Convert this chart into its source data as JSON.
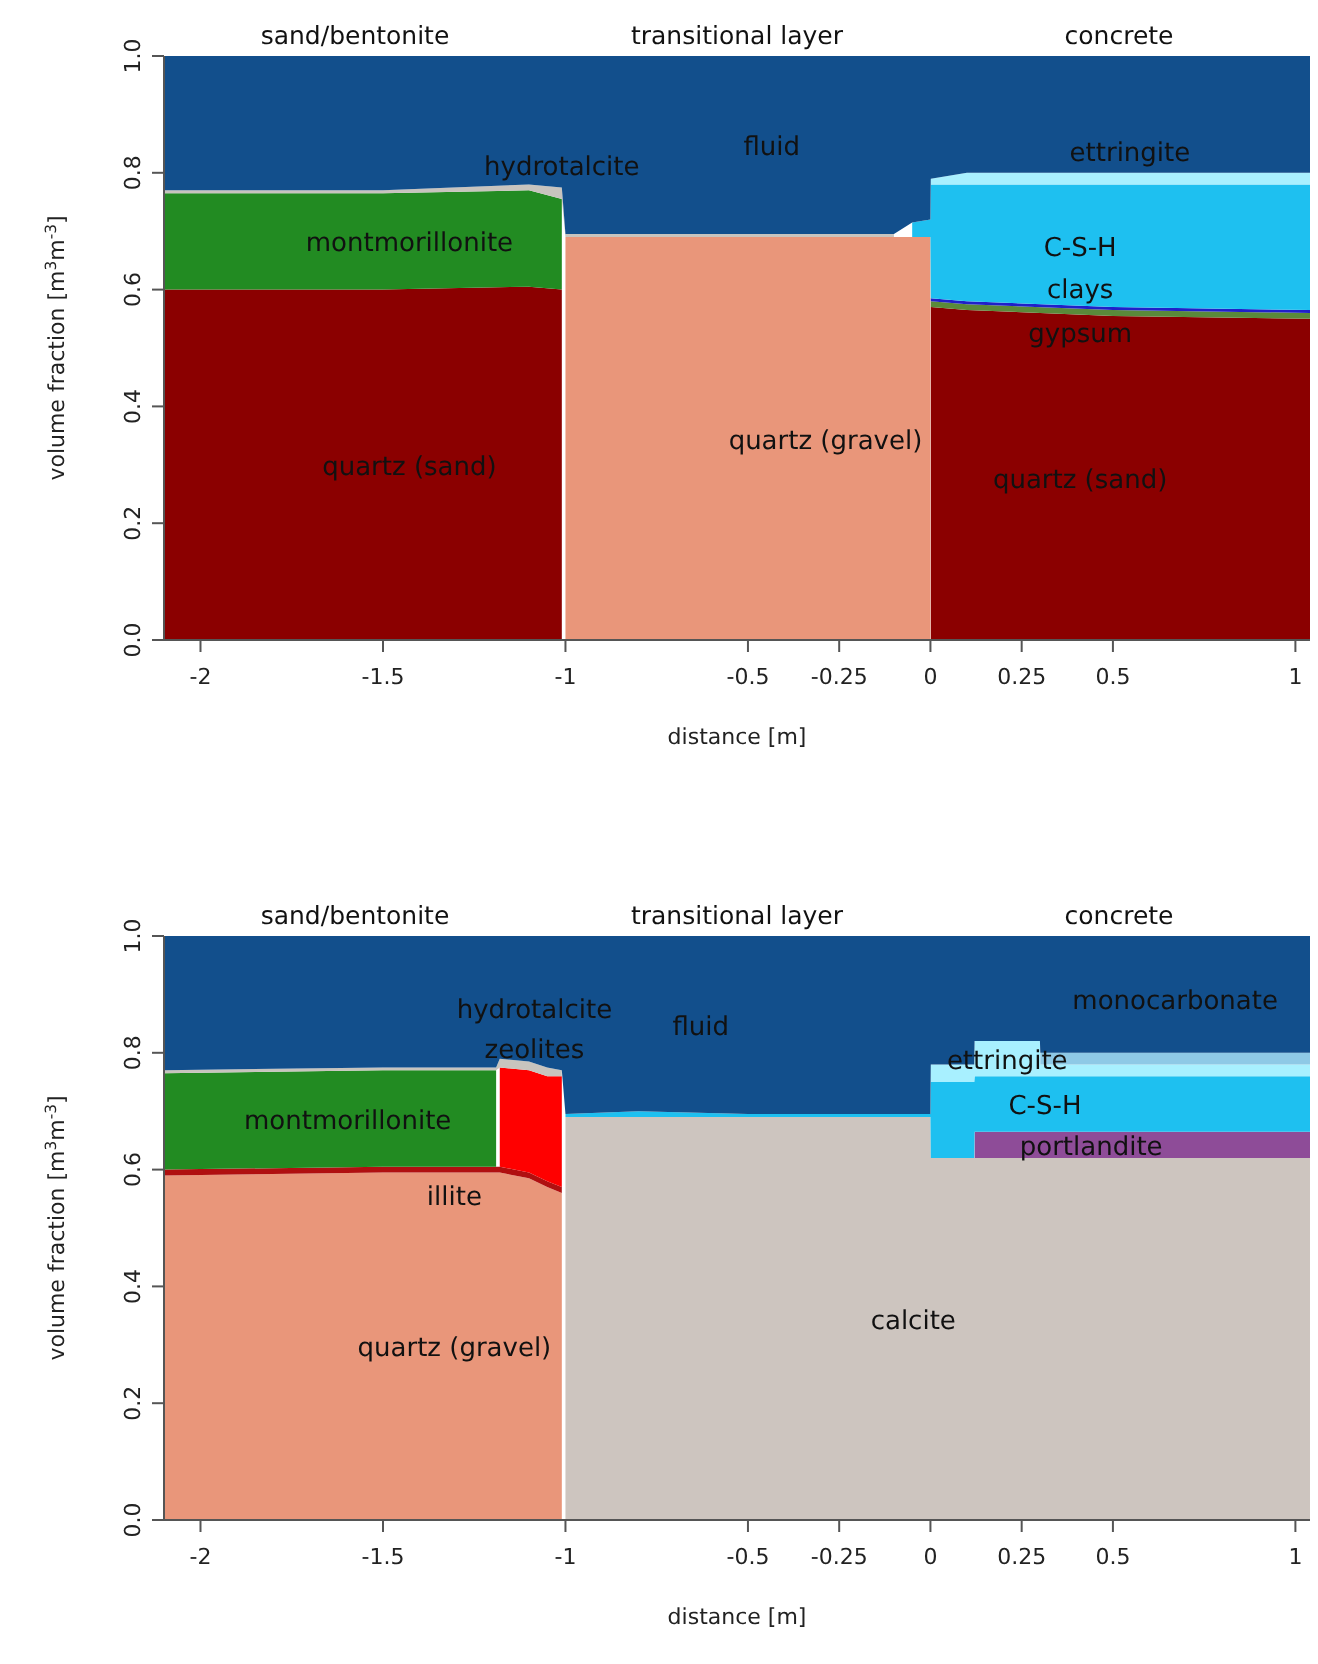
{
  "chart_data": [
    {
      "type": "area",
      "stacked": true,
      "xlabel": "distance [m]",
      "ylabel": "volume fraction [m$^{3}$m$^{-3}$]",
      "xlim": [
        -2.1,
        1.04
      ],
      "ylim": [
        0,
        1
      ],
      "xticks": [
        -2,
        -1.5,
        -1,
        -0.5,
        -0.25,
        0,
        0.25,
        0.5,
        1
      ],
      "yticks": [
        {
          "value": 0,
          "label": "0.0"
        },
        {
          "value": 0.2,
          "label": "0.2"
        },
        {
          "value": 0.4,
          "label": "0.4"
        },
        {
          "value": 0.6,
          "label": "0.6"
        },
        {
          "value": 0.8,
          "label": "0.8"
        },
        {
          "value": 1,
          "label": "1.0"
        }
      ],
      "x": [
        -2.1,
        -1.5,
        -1.1,
        -1.01,
        -1.0,
        -0.1,
        -0.05,
        0,
        0.001,
        0.1,
        0.5,
        1.04
      ],
      "series": [
        {
          "name": "quartz (sand)",
          "color": "#8b0000",
          "values": [
            0.6,
            0.6,
            0.605,
            0.6,
            null,
            null,
            null,
            null,
            0.57,
            0.565,
            0.555,
            0.55
          ]
        },
        {
          "name": "quartz (gravel)",
          "color": "#e9967a",
          "values": [
            null,
            null,
            null,
            null,
            0.69,
            0.69,
            0.69,
            0.69,
            null,
            null,
            null,
            null
          ]
        },
        {
          "name": "montmorillonite",
          "color": "#228b22",
          "values": [
            0.165,
            0.165,
            0.165,
            0.155,
            null,
            null,
            null,
            null,
            null,
            null,
            null,
            null
          ]
        },
        {
          "name": "clays",
          "color": "#5a8a3a",
          "values": [
            null,
            null,
            null,
            null,
            null,
            null,
            null,
            null,
            0.01,
            0.01,
            0.01,
            0.01
          ]
        },
        {
          "name": "gypsum",
          "color": "#2020c8",
          "values": [
            null,
            null,
            null,
            null,
            null,
            null,
            null,
            null,
            0.005,
            0.005,
            0.005,
            0.005
          ]
        },
        {
          "name": "hydrotalcite",
          "color": "#c8c4be",
          "values": [
            0.005,
            0.005,
            0.01,
            0.02,
            0.005,
            0.005,
            null,
            null,
            null,
            null,
            null,
            null
          ]
        },
        {
          "name": "C-S-H",
          "color": "#1ec0f0",
          "values": [
            null,
            null,
            null,
            null,
            null,
            null,
            0.025,
            0.03,
            0.195,
            0.2,
            0.21,
            0.215
          ]
        },
        {
          "name": "ettringite",
          "color": "#a8f0ff",
          "values": [
            null,
            null,
            null,
            null,
            null,
            null,
            null,
            null,
            0.01,
            0.02,
            0.02,
            0.02
          ]
        },
        {
          "name": "fluid",
          "color": "#124f8c",
          "values": [
            0.23,
            0.23,
            0.22,
            0.225,
            0.305,
            0.305,
            0.285,
            0.28,
            0.21,
            0.2,
            0.2,
            0.2
          ]
        }
      ],
      "annotations": [
        "sand/bentonite",
        "transitional layer",
        "concrete"
      ]
    },
    {
      "type": "area",
      "stacked": true,
      "xlabel": "distance [m]",
      "ylabel": "volume fraction [m$^{3}$m$^{-3}$]",
      "xlim": [
        -2.1,
        1.04
      ],
      "ylim": [
        0,
        1
      ],
      "xticks": [
        -2,
        -1.5,
        -1,
        -0.5,
        -0.25,
        0,
        0.25,
        0.5,
        1
      ],
      "yticks": [
        {
          "value": 0,
          "label": "0.0"
        },
        {
          "value": 0.2,
          "label": "0.2"
        },
        {
          "value": 0.4,
          "label": "0.4"
        },
        {
          "value": 0.6,
          "label": "0.6"
        },
        {
          "value": 0.8,
          "label": "0.8"
        },
        {
          "value": 1,
          "label": "1.0"
        }
      ],
      "x": [
        -2.1,
        -1.5,
        -1.19,
        -1.18,
        -1.1,
        -1.05,
        -1.01,
        -1.0,
        -0.8,
        -0.5,
        -0.1,
        0,
        0.001,
        0.12,
        0.121,
        0.3,
        0.301,
        1.04
      ],
      "series": [
        {
          "name": "quartz (gravel)",
          "color": "#e9967a",
          "values": [
            0.59,
            0.595,
            0.595,
            0.595,
            0.585,
            0.57,
            0.56,
            null,
            null,
            null,
            null,
            null,
            null,
            null,
            null,
            null,
            null,
            null
          ]
        },
        {
          "name": "illite",
          "color": "#b01010",
          "values": [
            0.01,
            0.01,
            0.01,
            0.01,
            0.01,
            0.01,
            0.01,
            null,
            null,
            null,
            null,
            null,
            null,
            null,
            null,
            null,
            null,
            null
          ]
        },
        {
          "name": "calcite",
          "color": "#cdc5bf",
          "values": [
            null,
            null,
            null,
            null,
            null,
            null,
            null,
            0.69,
            0.69,
            0.69,
            0.69,
            0.69,
            0.62,
            0.62,
            0.62,
            0.62,
            0.62,
            0.62
          ]
        },
        {
          "name": "montmorillonite",
          "color": "#228b22",
          "values": [
            0.165,
            0.165,
            0.165,
            null,
            null,
            null,
            null,
            null,
            null,
            null,
            null,
            null,
            null,
            null,
            null,
            null,
            null,
            null
          ]
        },
        {
          "name": "zeolites",
          "color": "#ff0000",
          "values": [
            null,
            null,
            null,
            0.17,
            0.175,
            0.18,
            0.19,
            null,
            null,
            null,
            null,
            null,
            null,
            null,
            null,
            null,
            null,
            null
          ]
        },
        {
          "name": "hydrotalcite",
          "color": "#c8c4be",
          "values": [
            0.005,
            0.005,
            0.005,
            0.015,
            0.015,
            0.015,
            0.01,
            null,
            null,
            null,
            null,
            null,
            null,
            null,
            null,
            null,
            null,
            null
          ]
        },
        {
          "name": "portlandite",
          "color": "#8e4c98",
          "values": [
            null,
            null,
            null,
            null,
            null,
            null,
            null,
            null,
            null,
            null,
            null,
            null,
            null,
            null,
            0.045,
            0.045,
            0.045,
            0.045
          ]
        },
        {
          "name": "C-S-H",
          "color": "#1ec0f0",
          "values": [
            null,
            null,
            null,
            null,
            null,
            null,
            null,
            0.005,
            0.01,
            0.005,
            0.005,
            0.005,
            0.13,
            0.13,
            0.095,
            0.095,
            0.095,
            0.095
          ]
        },
        {
          "name": "ettringite",
          "color": "#a8f0ff",
          "values": [
            null,
            null,
            null,
            null,
            null,
            null,
            null,
            null,
            null,
            null,
            null,
            null,
            0.03,
            0.03,
            0.06,
            0.06,
            0.02,
            0.02
          ]
        },
        {
          "name": "monocarbonate",
          "color": "#8ec9e6",
          "values": [
            null,
            null,
            null,
            null,
            null,
            null,
            null,
            null,
            null,
            null,
            null,
            null,
            null,
            null,
            null,
            null,
            0.02,
            0.02
          ]
        },
        {
          "name": "fluid",
          "color": "#124f8c",
          "values": [
            0.23,
            0.225,
            0.225,
            0.21,
            0.215,
            0.225,
            0.23,
            0.305,
            0.3,
            0.305,
            0.305,
            0.305,
            0.22,
            0.22,
            0.18,
            0.18,
            0.2,
            0.2
          ]
        }
      ],
      "annotations": [
        "sand/bentonite",
        "transitional layer",
        "concrete"
      ]
    }
  ]
}
